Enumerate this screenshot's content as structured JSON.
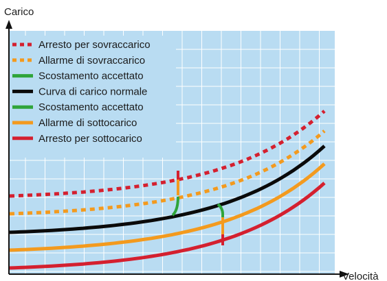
{
  "diagram": {
    "y_axis_label": "Carico",
    "x_axis_label": "Velocità",
    "plot_background": "#b9dcf2",
    "grid_color": "#ffffff",
    "axis_color": "#111111",
    "legend": [
      {
        "label": "Arresto per sovraccarico",
        "color": "#d4202f",
        "style": "dotted"
      },
      {
        "label": "Allarme di sovraccarico",
        "color": "#f39a1e",
        "style": "dotted"
      },
      {
        "label": "Scostamento accettato",
        "color": "#2fa43a",
        "style": "solid"
      },
      {
        "label": "Curva di carico normale",
        "color": "#0a0a0a",
        "style": "solid"
      },
      {
        "label": "Scostamento accettato",
        "color": "#2fa43a",
        "style": "solid"
      },
      {
        "label": "Allarme di sottocarico",
        "color": "#f39a1e",
        "style": "solid"
      },
      {
        "label": "Arresto per sottocarico",
        "color": "#d4202f",
        "style": "solid"
      }
    ],
    "curves": [
      {
        "name": "overload-stop",
        "color": "#d4202f",
        "style": "dotted"
      },
      {
        "name": "overload-alarm",
        "color": "#f39a1e",
        "style": "dotted"
      },
      {
        "name": "normal-load",
        "color": "#0a0a0a",
        "style": "solid"
      },
      {
        "name": "underload-alarm",
        "color": "#f39a1e",
        "style": "solid"
      },
      {
        "name": "underload-stop",
        "color": "#d4202f",
        "style": "solid"
      }
    ]
  }
}
